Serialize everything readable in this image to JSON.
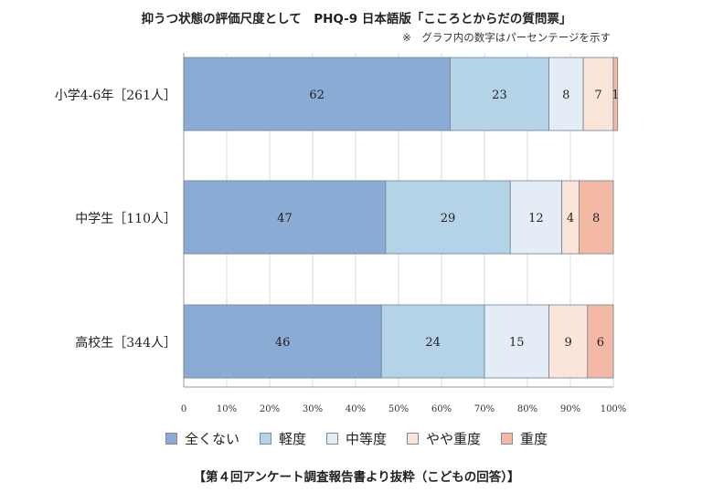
{
  "header": {
    "title": "抑うつ状態の評価尺度として　PHQ-9 日本語版「こころとからだの質問票」",
    "note": "※　グラフ内の数字はパーセンテージを示す"
  },
  "footer": {
    "source": "【第４回アンケート調査報告書より抜粋（こどもの回答）】"
  },
  "chart_data": {
    "type": "bar",
    "orientation": "horizontal",
    "stacked": true,
    "categories": [
      "小学4-6年［261人］",
      "中学生［110人］",
      "高校生［344人］"
    ],
    "series": [
      {
        "name": "全くない",
        "values": [
          62,
          47,
          46
        ],
        "color": "#8aabd3"
      },
      {
        "name": "軽度",
        "values": [
          23,
          29,
          24
        ],
        "color": "#b5d3e6"
      },
      {
        "name": "中等度",
        "values": [
          8,
          12,
          15
        ],
        "color": "#e4edf6"
      },
      {
        "name": "やや重度",
        "values": [
          7,
          4,
          9
        ],
        "color": "#fbe5d9"
      },
      {
        "name": "重度",
        "values": [
          1,
          8,
          6
        ],
        "color": "#f3b9a4"
      }
    ],
    "xlim": [
      0,
      100
    ],
    "x_ticks": [
      "0",
      "10%",
      "20%",
      "30%",
      "40%",
      "50%",
      "60%",
      "70%",
      "80%",
      "90%",
      "100%"
    ],
    "grid": true,
    "legend_position": "bottom"
  }
}
